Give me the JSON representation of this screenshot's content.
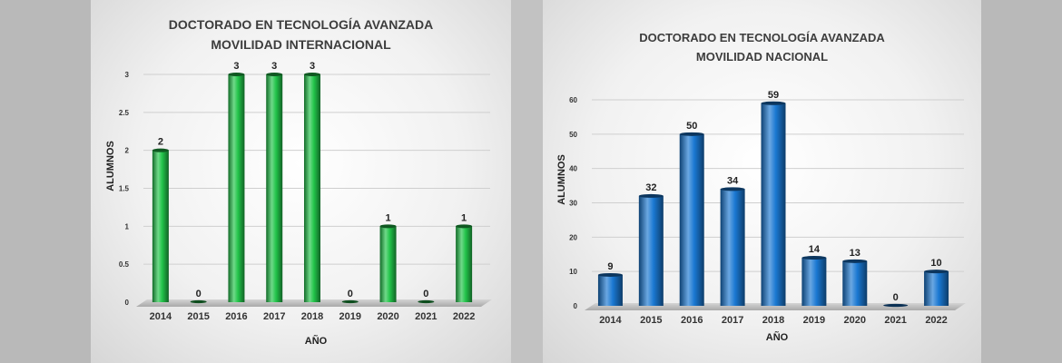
{
  "chart_data": [
    {
      "type": "bar",
      "title_line1": "DOCTORADO EN TECNOLOGÍA AVANZADA",
      "title_line2": "MOVILIDAD INTERNACIONAL",
      "xlabel": "AÑO",
      "ylabel": "ALUMNOS",
      "categories": [
        "2014",
        "2015",
        "2016",
        "2017",
        "2018",
        "2019",
        "2020",
        "2021",
        "2022"
      ],
      "values": [
        2,
        0,
        3,
        3,
        3,
        0,
        1,
        0,
        1
      ],
      "ylim": [
        0,
        3
      ],
      "yticks": [
        "0",
        "0.5",
        "1",
        "1.5",
        "2",
        "2.5",
        "3"
      ],
      "grid": true,
      "legend": "none",
      "color": "#22c44a"
    },
    {
      "type": "bar",
      "title_line1": "DOCTORADO EN TECNOLOGÍA AVANZADA",
      "title_line2": "MOVILIDAD NACIONAL",
      "xlabel": "AÑO",
      "ylabel": "ALUMNOS",
      "categories": [
        "2014",
        "2015",
        "2016",
        "2017",
        "2018",
        "2019",
        "2020",
        "2021",
        "2022"
      ],
      "values": [
        9,
        32,
        50,
        34,
        59,
        14,
        13,
        0,
        10
      ],
      "ylim": [
        0,
        60
      ],
      "yticks": [
        "0",
        "10",
        "20",
        "30",
        "40",
        "50",
        "60"
      ],
      "grid": true,
      "legend": "none",
      "color": "#1a78d2"
    }
  ]
}
